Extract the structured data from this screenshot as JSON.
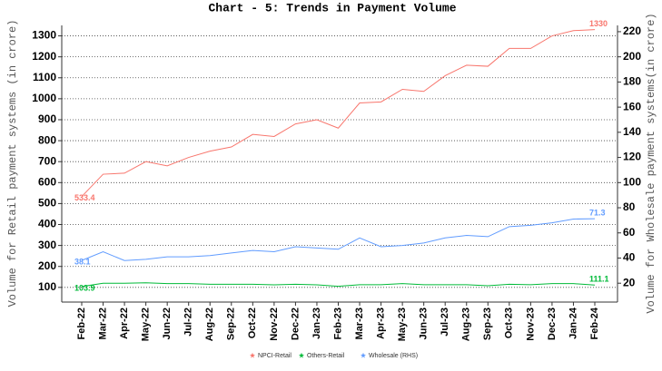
{
  "chart_data": {
    "type": "line",
    "title": "Chart - 5: Trends in Payment Volume",
    "y_label": "Volume for Retail payment systems (in crore)",
    "y2_label": "Volume for Wholesale payment systems(in crore)",
    "categories": [
      "Feb-22",
      "Mar-22",
      "Apr-22",
      "May-22",
      "Jun-22",
      "Jul-22",
      "Aug-22",
      "Sep-22",
      "Oct-22",
      "Nov-22",
      "Dec-22",
      "Jan-23",
      "Feb-23",
      "Mar-23",
      "Apr-23",
      "May-23",
      "Jun-23",
      "Jul-23",
      "Aug-23",
      "Sep-23",
      "Oct-23",
      "Nov-23",
      "Dec-23",
      "Jan-24",
      "Feb-24"
    ],
    "series": [
      {
        "name": "NPCI-Retail",
        "color": "#f8766d",
        "axis": "y",
        "values": [
          533.4,
          640,
          645,
          700,
          680,
          720,
          750,
          770,
          830,
          820,
          880,
          900,
          860,
          980,
          985,
          1045,
          1035,
          1110,
          1160,
          1155,
          1240,
          1240,
          1300,
          1325,
          1330
        ],
        "value_labels": [
          "533.4",
          null,
          null,
          null,
          null,
          null,
          null,
          null,
          null,
          null,
          null,
          null,
          null,
          null,
          null,
          null,
          null,
          null,
          null,
          null,
          null,
          null,
          null,
          null,
          "1330"
        ]
      },
      {
        "name": "Others-Retail",
        "color": "#00ba38",
        "axis": "y",
        "values": [
          103.9,
          120,
          120,
          122,
          118,
          118,
          115,
          115,
          115,
          112,
          115,
          112,
          105,
          113,
          113,
          118,
          113,
          113,
          113,
          108,
          115,
          113,
          118,
          118,
          111.1
        ],
        "value_labels": [
          "103.9",
          null,
          null,
          null,
          null,
          null,
          null,
          null,
          null,
          null,
          null,
          null,
          null,
          null,
          null,
          null,
          null,
          null,
          null,
          null,
          null,
          null,
          null,
          null,
          "111.1"
        ]
      },
      {
        "name": "Wholesale (RHS)",
        "color": "#619cff",
        "axis": "y2",
        "values": [
          38.1,
          45,
          38,
          39,
          41,
          41,
          42,
          44,
          46,
          45,
          49,
          48,
          47,
          56,
          49,
          50,
          52,
          56,
          58,
          57,
          65,
          66,
          68,
          71,
          71.3
        ],
        "value_labels": [
          "38.1",
          null,
          null,
          null,
          null,
          null,
          null,
          null,
          null,
          null,
          null,
          null,
          null,
          null,
          null,
          null,
          null,
          null,
          null,
          null,
          null,
          null,
          null,
          null,
          "71.3"
        ]
      }
    ],
    "ylim": [
      30,
      1350
    ],
    "yticks": [
      100,
      200,
      300,
      400,
      500,
      600,
      700,
      800,
      900,
      1000,
      1100,
      1200,
      1300
    ],
    "y2lim": [
      5,
      225
    ],
    "y2ticks": [
      20,
      40,
      60,
      80,
      100,
      120,
      140,
      160,
      180,
      200,
      220
    ],
    "grid": true,
    "legend": "bottom"
  }
}
